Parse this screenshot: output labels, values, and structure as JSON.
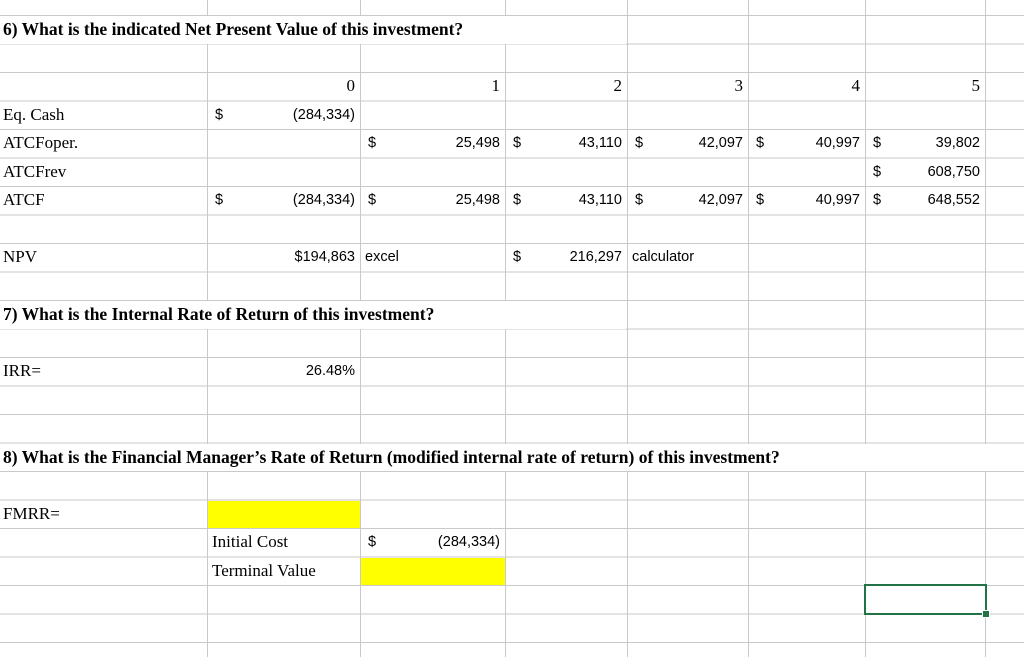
{
  "colors": {
    "highlight": "#ffff00",
    "selection_border": "#217346",
    "gridline": "#c9c9c9"
  },
  "questions": {
    "q6": "6) What is the indicated Net Present Value of this investment?",
    "q7": "7) What is the Internal Rate of Return of this investment?",
    "q8": "8) What is the Financial Manager’s Rate of Return (modified internal rate of return) of this investment?"
  },
  "periods": [
    "0",
    "1",
    "2",
    "3",
    "4",
    "5"
  ],
  "rows": {
    "eq_cash": {
      "label": "Eq. Cash",
      "p0": {
        "cur": "$",
        "amt": "(284,334)"
      }
    },
    "atcf_oper": {
      "label": "ATCFoper.",
      "p1": {
        "cur": "$",
        "amt": "25,498"
      },
      "p2": {
        "cur": "$",
        "amt": "43,110"
      },
      "p3": {
        "cur": "$",
        "amt": "42,097"
      },
      "p4": {
        "cur": "$",
        "amt": "40,997"
      },
      "p5": {
        "cur": "$",
        "amt": "39,802"
      }
    },
    "atcf_rev": {
      "label": "ATCFrev",
      "p5": {
        "cur": "$",
        "amt": "608,750"
      }
    },
    "atcf": {
      "label": "ATCF",
      "p0": {
        "cur": "$",
        "amt": "(284,334)"
      },
      "p1": {
        "cur": "$",
        "amt": "25,498"
      },
      "p2": {
        "cur": "$",
        "amt": "43,110"
      },
      "p3": {
        "cur": "$",
        "amt": "42,097"
      },
      "p4": {
        "cur": "$",
        "amt": "40,997"
      },
      "p5": {
        "cur": "$",
        "amt": "648,552"
      }
    },
    "npv": {
      "label": "NPV",
      "excel_value": "$194,863",
      "excel_note": "excel",
      "calc": {
        "cur": "$",
        "amt": "216,297"
      },
      "calc_note": "calculator"
    },
    "irr": {
      "label": "IRR=",
      "value": "26.48%"
    },
    "fmrr": {
      "label": "FMRR="
    },
    "initial_cost": {
      "label": "Initial Cost",
      "value": {
        "cur": "$",
        "amt": "(284,334)"
      }
    },
    "terminal_value": {
      "label": "Terminal Value"
    }
  }
}
